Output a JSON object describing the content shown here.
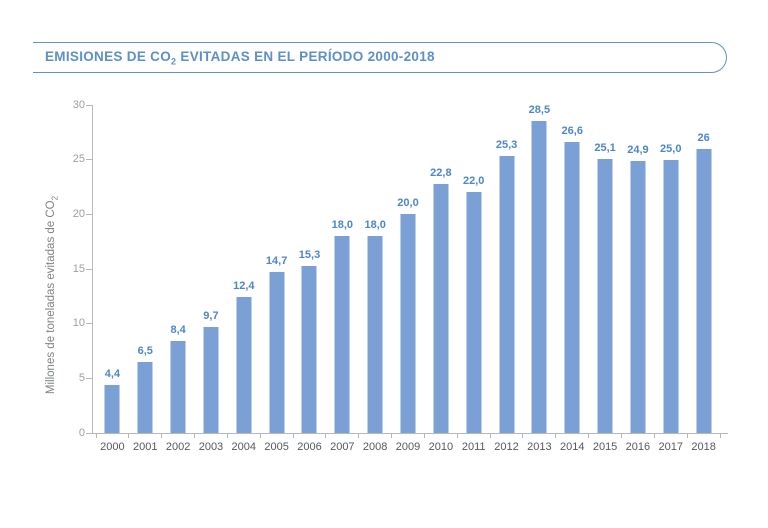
{
  "title": {
    "before": "EMISIONES DE CO",
    "sub": "2",
    "after": " EVITADAS EN EL PERÍODO 2000-2018"
  },
  "y_axis": {
    "label_before": "Millones de toneladas evitadas de CO",
    "label_sub": "2"
  },
  "colors": {
    "accent_blue": "#5d8fc9",
    "banner_border": "#6092cb",
    "bar_fill": "#7aa0d5",
    "value_label": "#4f86c8",
    "axis_line": "#b6b9bc",
    "ytick_label": "#9b9fa3",
    "xtick_label": "#55585b",
    "y_title": "#7e8286"
  },
  "chart_data": {
    "type": "bar",
    "title": "EMISIONES DE CO2 EVITADAS EN EL PERÍODO 2000-2018",
    "categories": [
      "2000",
      "2001",
      "2002",
      "2003",
      "2004",
      "2005",
      "2006",
      "2007",
      "2008",
      "2009",
      "2010",
      "2011",
      "2012",
      "2013",
      "2014",
      "2015",
      "2016",
      "2017",
      "2018"
    ],
    "values": [
      4.4,
      6.5,
      8.4,
      9.7,
      12.4,
      14.7,
      15.3,
      18.0,
      18.0,
      20.0,
      22.8,
      22.0,
      25.3,
      28.5,
      26.6,
      25.1,
      24.9,
      25.0,
      26
    ],
    "value_labels": [
      "4,4",
      "6,5",
      "8,4",
      "9,7",
      "12,4",
      "14,7",
      "15,3",
      "18,0",
      "18,0",
      "20,0",
      "22,8",
      "22,0",
      "25,3",
      "28,5",
      "26,6",
      "25,1",
      "24,9",
      "25,0",
      "26"
    ],
    "xlabel": "",
    "ylabel": "Millones de toneladas evitadas de CO2",
    "ylim": [
      0,
      30
    ],
    "yticks": [
      0,
      5,
      10,
      15,
      20,
      25,
      30
    ],
    "grid": false,
    "legend": "none",
    "data_label_position": "above-bar",
    "decimal_separator": ","
  }
}
